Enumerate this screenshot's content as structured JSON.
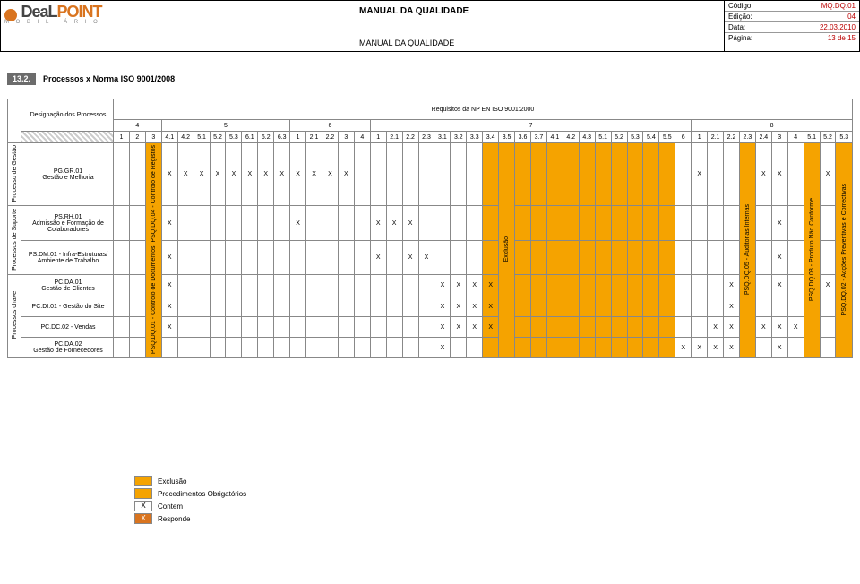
{
  "header": {
    "logo_a": "DeaL",
    "logo_b": "POINT",
    "logo_sub": "M O B I L I Á R I O",
    "title_main": "MANUAL DA QUALIDADE",
    "title_sub": "MANUAL DA QUALIDADE",
    "meta": [
      {
        "k": "Código:",
        "v": "MQ.DQ.01"
      },
      {
        "k": "Edição:",
        "v": "04"
      },
      {
        "k": "Data:",
        "v": "22.03.2010"
      },
      {
        "k": "Página:",
        "v": "13 de 15"
      }
    ]
  },
  "section": {
    "num": "13.2.",
    "title": "Processos x Norma ISO 9001/2008"
  },
  "matrix": {
    "desig_label": "Designação dos Processos",
    "req_label": "Requisitos da NP EN ISO 9001:2000",
    "groups": [
      "4",
      "5",
      "6",
      "7",
      "8"
    ],
    "cols": [
      "1",
      "2",
      "3",
      "4.1",
      "4.2",
      "5.1",
      "5.2",
      "5.3",
      "6.1",
      "6.2",
      "6.3",
      "1",
      "2.1",
      "2.2",
      "3",
      "4",
      "1",
      "2.1",
      "2.2",
      "2.3",
      "3.1",
      "3.2",
      "3.3",
      "3.4",
      "3.5",
      "3.6",
      "3.7",
      "4.1",
      "4.2",
      "4.3",
      "5.1",
      "5.2",
      "5.3",
      "5.4",
      "5.5",
      "6",
      "1",
      "2.1",
      "2.2",
      "2.3",
      "2.4",
      "3",
      "4",
      "5.1",
      "5.2",
      "5.3"
    ],
    "group_spans": [
      3,
      8,
      5,
      20,
      10
    ],
    "proc_cats": [
      {
        "label": "Processo de Gestão",
        "rows": 1
      },
      {
        "label": "Processos de Suporte",
        "rows": 2
      },
      {
        "label": "Processos chave",
        "rows": 4
      }
    ],
    "vert_procs": [
      "PSQ.DQ.01 - Controlo de Documentos; PSQ.DQ.04 - Controlo de Registos",
      "Exclusão",
      "PSQ.DQ.05 - Auditorias Internas",
      "PSQ.DQ.03 - Produto Não Conforme",
      "PSQ.DQ.02 - Acções Preventivas e Correctivas"
    ],
    "vert_cols": [
      2,
      24,
      39,
      43,
      45
    ],
    "rows": [
      {
        "label": "PG.GR.01\nGestão e Melhoria",
        "x": [
          3,
          4,
          5,
          6,
          7,
          8,
          9,
          10,
          11,
          12,
          13,
          14,
          36,
          40,
          41,
          43,
          44,
          46,
          47
        ]
      },
      {
        "label": "PS.RH.01\nAdmissão e Formação de Colaboradores",
        "x": [
          3,
          11,
          16,
          17,
          18,
          41,
          43
        ]
      },
      {
        "label": "PS.DM.01 - Infra-Estruturas/ Ambiente de Trabalho",
        "x": [
          3,
          16,
          18,
          19,
          41,
          43
        ]
      },
      {
        "label": "PC.DA.01\nGestão de Clientes",
        "x": [
          3,
          20,
          21,
          22,
          23,
          38,
          39,
          41,
          43,
          44,
          45
        ]
      },
      {
        "label": "PC.DI.01 - Gestão do Site",
        "x": [
          3,
          20,
          21,
          22,
          23,
          38,
          39,
          43,
          45,
          46
        ]
      },
      {
        "label": "PC.DC.02 - Vendas",
        "x": [
          3,
          20,
          21,
          22,
          23,
          37,
          38,
          39,
          40,
          41,
          42,
          43,
          45,
          46
        ]
      },
      {
        "label": "PC.DA.02\nGestão de Fornecedores",
        "x": [
          20,
          35,
          36,
          37,
          38,
          39,
          41,
          43,
          45,
          46
        ]
      }
    ]
  },
  "legend": {
    "exclusao": "Exclusão",
    "proc_obrig": "Procedimentos Obrigatórios",
    "contem": "Contem",
    "responde": "Responde",
    "x": "X"
  }
}
